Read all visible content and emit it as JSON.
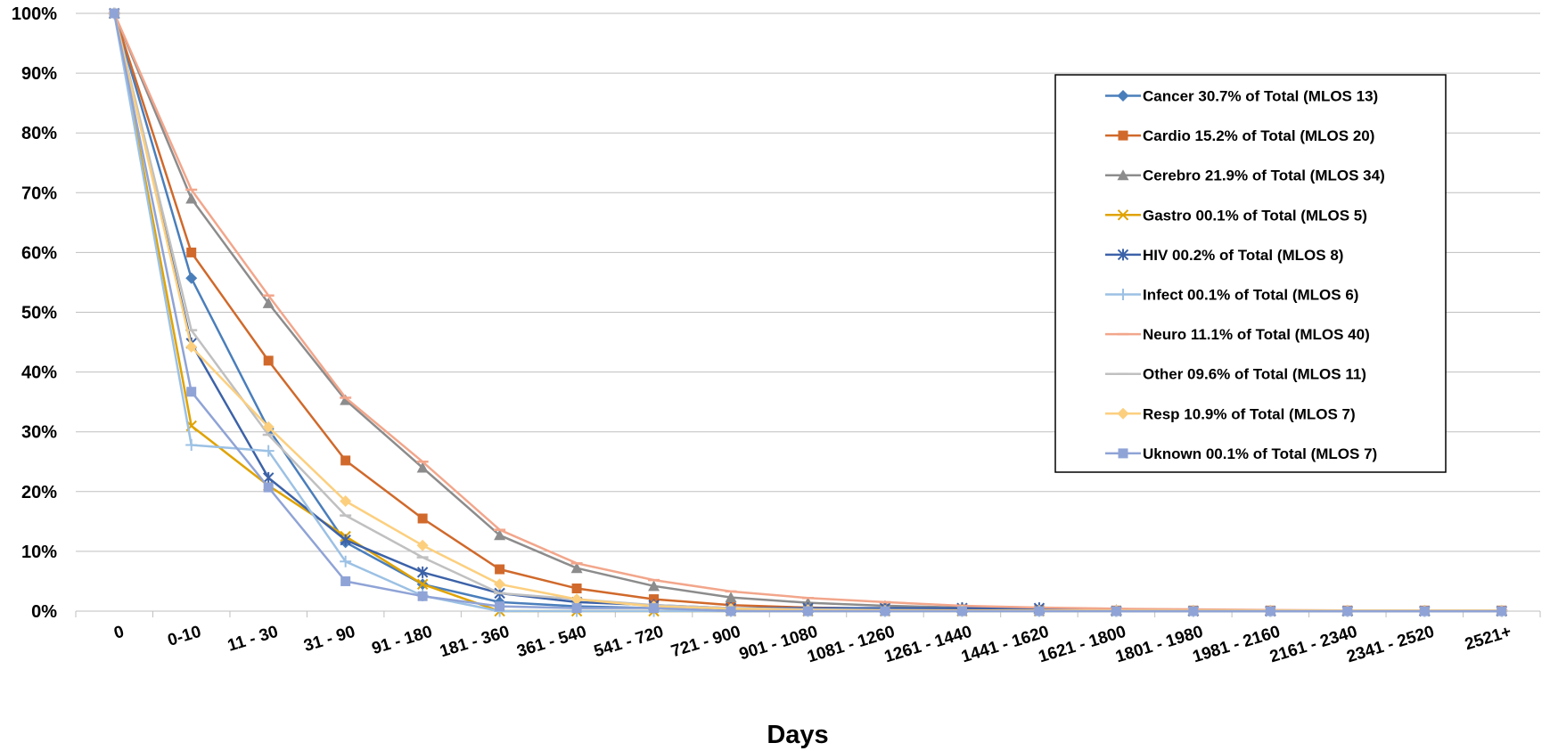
{
  "chart_data": {
    "type": "line",
    "xlabel": "Days",
    "ylabel": "",
    "title": "",
    "categories": [
      "0",
      "0-10",
      "11 - 30",
      "31 - 90",
      "91 - 180",
      "181 - 360",
      "361 - 540",
      "541 - 720",
      "721 - 900",
      "901 - 1080",
      "1081 - 1260",
      "1261 - 1440",
      "1441 - 1620",
      "1621 - 1800",
      "1801 - 1980",
      "1981 - 2160",
      "2161 - 2340",
      "2341 - 2520",
      "2521+"
    ],
    "ylim": [
      0,
      100
    ],
    "yticks": [
      "0%",
      "10%",
      "20%",
      "30%",
      "40%",
      "50%",
      "60%",
      "70%",
      "80%",
      "90%",
      "100%"
    ],
    "grid": true,
    "legend_position": "right",
    "series": [
      {
        "name": "Cancer   30.7% of Total (MLOS 13)",
        "color": "#4a7ebb",
        "marker": "diamond",
        "values": [
          100,
          55.7,
          30.5,
          11.5,
          4.5,
          1.5,
          0.8,
          0.5,
          0.3,
          0.2,
          0.1,
          0.1,
          0.1,
          0.1,
          0.1,
          0.1,
          0.1,
          0.1,
          0.1
        ]
      },
      {
        "name": "Cardio  15.2% of Total (MLOS 20)",
        "color": "#d0692b",
        "marker": "square",
        "values": [
          100,
          60.0,
          41.9,
          25.2,
          15.5,
          7.0,
          3.8,
          2.0,
          1.0,
          0.6,
          0.4,
          0.3,
          0.2,
          0.1,
          0.1,
          0.1,
          0.1,
          0.1,
          0.1
        ]
      },
      {
        "name": "Cerebro  21.9% of Total (MLOS 34)",
        "color": "#8c8c8c",
        "marker": "triangle",
        "values": [
          100,
          69.0,
          51.5,
          35.3,
          24.0,
          12.7,
          7.2,
          4.2,
          2.3,
          1.4,
          0.9,
          0.6,
          0.4,
          0.2,
          0.1,
          0.1,
          0.1,
          0.1,
          0.1
        ]
      },
      {
        "name": "Gastro   00.1% of Total (MLOS 5)",
        "color": "#e0a300",
        "marker": "x",
        "values": [
          100,
          31.0,
          21.0,
          12.5,
          4.5,
          0,
          0,
          0,
          0,
          0,
          0,
          0,
          0,
          0,
          0,
          0,
          0,
          0,
          0
        ]
      },
      {
        "name": "HIV  00.2% of Total (MLOS 8)",
        "color": "#3c62a8",
        "marker": "star",
        "values": [
          100,
          44.8,
          22.3,
          11.9,
          6.5,
          3.0,
          1.5,
          1.0,
          0.5,
          0.5,
          0.5,
          0.5,
          0.5,
          0,
          0,
          0,
          0,
          0,
          0
        ]
      },
      {
        "name": "Infect 00.1% of Total (MLOS 6)",
        "color": "#9cc1e4",
        "marker": "plus",
        "values": [
          100,
          27.8,
          26.8,
          8.3,
          2.6,
          0,
          0,
          0,
          0,
          0,
          0,
          0,
          0,
          0,
          0,
          0,
          0,
          0,
          0
        ]
      },
      {
        "name": "Neuro   11.1% of Total (MLOS 40)",
        "color": "#f2a68b",
        "marker": "dash",
        "values": [
          100,
          70.5,
          52.8,
          35.7,
          25.0,
          13.6,
          8.0,
          5.2,
          3.3,
          2.2,
          1.5,
          0.9,
          0.6,
          0.4,
          0.3,
          0.2,
          0.1,
          0.1,
          0.1
        ]
      },
      {
        "name": "Other  09.6% of Total (MLOS 11)",
        "color": "#c0c0c0",
        "marker": "dash",
        "values": [
          100,
          47.0,
          29.5,
          16.0,
          9.0,
          3.0,
          2.0,
          1.0,
          0.5,
          0.3,
          0.2,
          0.1,
          0.1,
          0.1,
          0.1,
          0.1,
          0.1,
          0.1,
          0.1
        ]
      },
      {
        "name": "Resp  10.9% of Total (MLOS 7)",
        "color": "#fccf7e",
        "marker": "diamond",
        "values": [
          100,
          44.2,
          30.8,
          18.4,
          11.0,
          4.5,
          2.0,
          0.8,
          0.4,
          0.2,
          0.1,
          0.1,
          0.1,
          0.1,
          0.1,
          0.1,
          0.1,
          0.1,
          0.1
        ]
      },
      {
        "name": "Uknown  00.1% of Total (MLOS 7)",
        "color": "#8fa3d6",
        "marker": "square",
        "values": [
          100,
          36.7,
          20.7,
          5.0,
          2.5,
          0.8,
          0.5,
          0.5,
          0,
          0,
          0,
          0,
          0,
          0,
          0,
          0,
          0,
          0,
          0
        ]
      }
    ]
  }
}
